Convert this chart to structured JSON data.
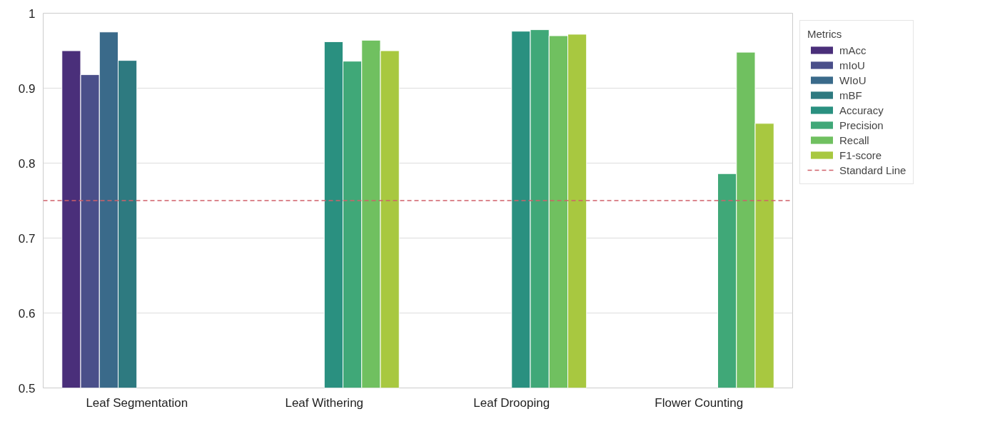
{
  "chart_data": {
    "type": "bar",
    "categories": [
      "Leaf Segmentation",
      "Leaf Withering",
      "Leaf Drooping",
      "Flower Counting"
    ],
    "legend_title": "Metrics",
    "legend": "right",
    "grid": "y",
    "ylim": [
      0.5,
      1.0
    ],
    "yticks": [
      0.5,
      0.6,
      0.7,
      0.8,
      0.9,
      {
        "value": 1.0,
        "label": "1"
      }
    ],
    "series": [
      {
        "name": "mAcc",
        "color": "#4a2f7a",
        "values": [
          0.95,
          null,
          null,
          null
        ]
      },
      {
        "name": "mIoU",
        "color": "#4a4f8a",
        "values": [
          0.918,
          null,
          null,
          null
        ]
      },
      {
        "name": "WIoU",
        "color": "#3a6a8a",
        "values": [
          0.975,
          null,
          null,
          null
        ]
      },
      {
        "name": "mBF",
        "color": "#2e7a80",
        "values": [
          0.937,
          null,
          null,
          null
        ]
      },
      {
        "name": "Accuracy",
        "color": "#2a9080",
        "values": [
          null,
          0.962,
          0.976,
          null
        ]
      },
      {
        "name": "Precision",
        "color": "#40a878",
        "values": [
          null,
          0.936,
          0.978,
          0.786
        ]
      },
      {
        "name": "Recall",
        "color": "#70c060",
        "values": [
          null,
          0.964,
          0.97,
          0.948
        ]
      },
      {
        "name": "F1-score",
        "color": "#a8c840",
        "values": [
          null,
          0.95,
          0.972,
          0.853
        ]
      }
    ],
    "ref_lines": [
      {
        "axis": "y",
        "value": 0.75,
        "label": "Standard Line",
        "color": "#d0606a",
        "line_style": "dashed"
      }
    ]
  }
}
